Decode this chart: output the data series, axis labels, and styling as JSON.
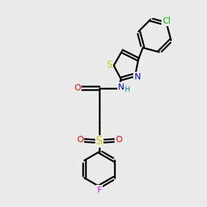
{
  "background_color": "#ebebeb",
  "bond_color": "#000000",
  "bond_width": 1.8,
  "atom_colors": {
    "N": "#0000cc",
    "O": "#ff0000",
    "S_thiazole": "#cccc00",
    "S_sulfonyl": "#cccc00",
    "Cl": "#00bb00",
    "F": "#ff00ff",
    "H": "#008080"
  },
  "font_size": 9,
  "fig_width": 3.0,
  "fig_height": 3.0,
  "dpi": 100
}
